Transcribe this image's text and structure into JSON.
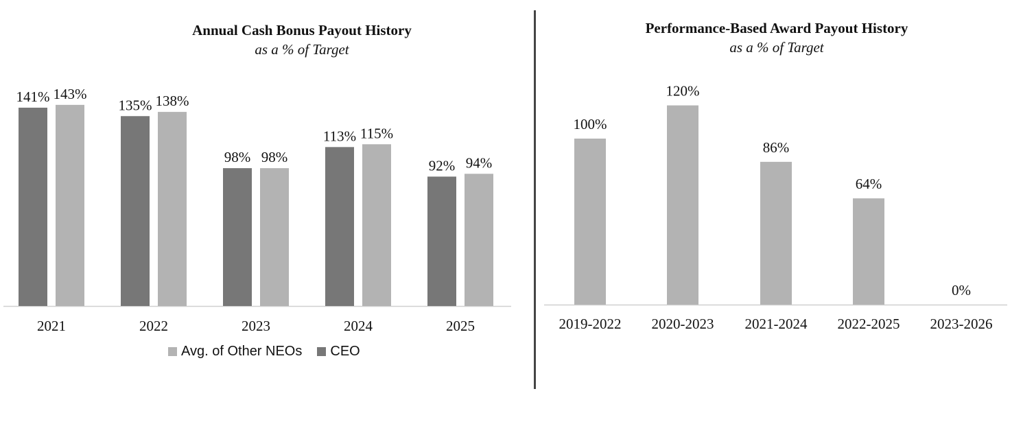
{
  "chart_data": [
    {
      "type": "bar",
      "title": "Annual Cash Bonus Payout History",
      "subtitle": "as a % of Target",
      "categories": [
        "2021",
        "2022",
        "2023",
        "2024",
        "2025"
      ],
      "series": [
        {
          "name": "CEO",
          "color": "#777777",
          "values": [
            141,
            135,
            98,
            113,
            92
          ],
          "labels": [
            "141%",
            "135%",
            "98%",
            "113%",
            "92%"
          ]
        },
        {
          "name": "Avg. of Other NEOs",
          "color": "#b3b3b3",
          "values": [
            143,
            138,
            98,
            115,
            94
          ],
          "labels": [
            "143%",
            "138%",
            "98%",
            "115%",
            "94%"
          ]
        }
      ],
      "legend": [
        {
          "name": "Avg. of Other NEOs",
          "color": "#b3b3b3"
        },
        {
          "name": "CEO",
          "color": "#777777"
        }
      ],
      "legend_position": "bottom",
      "ylim": [
        0,
        160
      ],
      "grid": false
    },
    {
      "type": "bar",
      "title": "Performance-Based Award  Payout History",
      "subtitle": "as a % of Target",
      "categories": [
        "2019-2022",
        "2020-2023",
        "2021-2024",
        "2022-2025",
        "2023-2026"
      ],
      "series": [
        {
          "color": "#b3b3b3",
          "values": [
            100,
            120,
            86,
            64,
            0
          ],
          "labels": [
            "100%",
            "120%",
            "86%",
            "64%",
            "0%"
          ]
        }
      ],
      "ylim": [
        0,
        160
      ],
      "grid": false
    }
  ]
}
